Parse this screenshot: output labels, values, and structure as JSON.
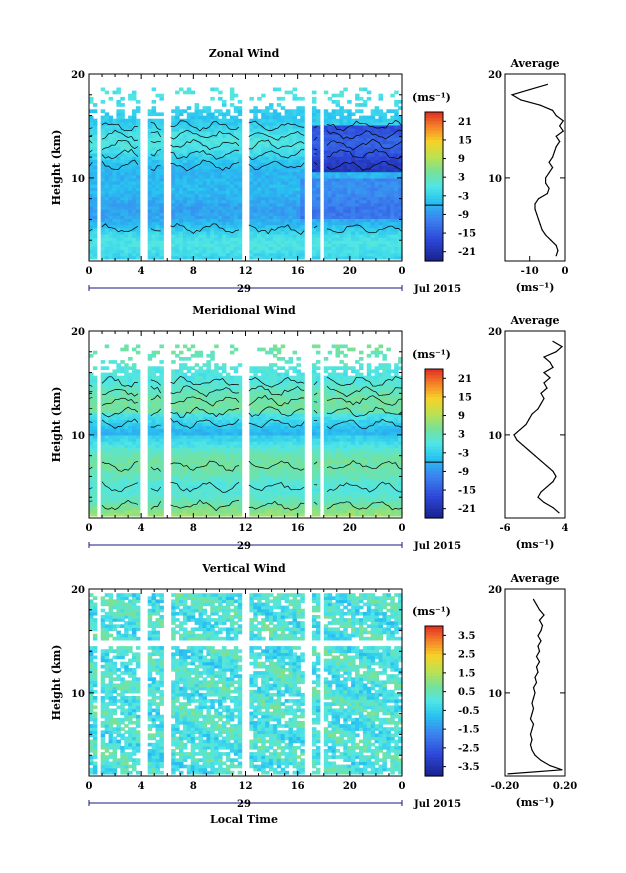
{
  "common": {
    "time_ticks": [
      "0",
      "4",
      "8",
      "12",
      "16",
      "20",
      "0"
    ],
    "day_label": "29",
    "date_label": "Jul 2015",
    "height_label": "Height (km)",
    "height_ticks": [
      "10",
      "20"
    ],
    "colorbar_unit": "(ms⁻¹)",
    "xlabel": "Local Time",
    "average_title": "Average",
    "average_unit": "(ms⁻¹)"
  },
  "chart_data": [
    {
      "type": "heatmap",
      "title": "Zonal Wind",
      "xlabel": "Local Time",
      "ylabel": "Height (km)",
      "xlim": [
        0,
        24
      ],
      "ylim": [
        2,
        20
      ],
      "colorbar": {
        "unit": "(ms⁻¹)",
        "ticks": [
          "21",
          "15",
          "9",
          "3",
          "-3",
          "-9",
          "-15",
          "-21"
        ],
        "range": [
          -24,
          24
        ]
      },
      "profile": {
        "title": "Average",
        "xlabel": "(ms⁻¹)",
        "xlim": [
          -17,
          0
        ],
        "xticks": [
          "-10",
          "0"
        ],
        "heights": [
          2.5,
          3,
          3.5,
          4,
          4.5,
          5,
          5.5,
          6,
          6.5,
          7,
          7.5,
          8,
          8.5,
          9,
          9.5,
          10,
          10.5,
          11,
          11.5,
          12,
          12.5,
          13,
          13.5,
          14,
          14.5,
          15,
          15.5,
          16,
          16.5,
          17,
          17.5,
          18,
          18.5,
          19
        ],
        "values": [
          -2.5,
          -2,
          -2.5,
          -4,
          -5.5,
          -6.5,
          -7,
          -7.5,
          -8,
          -8.5,
          -8.5,
          -7.5,
          -5,
          -4.5,
          -5.5,
          -5.5,
          -4.5,
          -3.5,
          -4.5,
          -3.5,
          -3,
          -2.5,
          -1.5,
          -2.5,
          -0.5,
          -1.5,
          -0.5,
          -2.5,
          -3.5,
          -7,
          -12.5,
          -15,
          -10,
          -5
        ]
      }
    },
    {
      "type": "heatmap",
      "title": "Meridional Wind",
      "xlabel": "Local Time",
      "ylabel": "Height (km)",
      "xlim": [
        0,
        24
      ],
      "ylim": [
        2,
        20
      ],
      "colorbar": {
        "unit": "(ms⁻¹)",
        "ticks": [
          "21",
          "15",
          "9",
          "3",
          "-3",
          "-9",
          "-15",
          "-21"
        ],
        "range": [
          -24,
          24
        ]
      },
      "profile": {
        "title": "Average",
        "xlabel": "(ms⁻¹)",
        "xlim": [
          -6,
          4
        ],
        "xticks": [
          "-6",
          "4"
        ],
        "heights": [
          2.5,
          3,
          3.5,
          4,
          4.5,
          5,
          5.5,
          6,
          6.5,
          7,
          7.5,
          8,
          8.5,
          9,
          9.5,
          10,
          10.5,
          11,
          11.5,
          12,
          12.5,
          13,
          13.5,
          14,
          14.5,
          15,
          15.5,
          16,
          16.5,
          17,
          17.5,
          18,
          18.5,
          19
        ],
        "values": [
          3,
          2,
          0.5,
          -0.5,
          0,
          1,
          2,
          2.5,
          2,
          1,
          0,
          -1,
          -2,
          -3,
          -4,
          -4.5,
          -3.5,
          -2.5,
          -2,
          -1.5,
          -0.5,
          0,
          0.5,
          0,
          1,
          0.5,
          1.5,
          0.5,
          2,
          1.5,
          0.5,
          2.5,
          3.5,
          2
        ]
      }
    },
    {
      "type": "heatmap",
      "title": "Vertical Wind",
      "xlabel": "Local Time",
      "ylabel": "Height (km)",
      "xlim": [
        0,
        24
      ],
      "ylim": [
        2,
        20
      ],
      "colorbar": {
        "unit": "(ms⁻¹)",
        "ticks": [
          "3.5",
          "2.5",
          "1.5",
          "0.5",
          "-0.5",
          "-1.5",
          "-2.5",
          "-3.5"
        ],
        "range": [
          -4,
          4
        ]
      },
      "profile": {
        "title": "Average",
        "xlabel": "(ms⁻¹)",
        "xlim": [
          -0.2,
          0.2
        ],
        "xticks": [
          "-0.20",
          "0.20"
        ],
        "heights": [
          2.2,
          2.6,
          3,
          3.5,
          4,
          4.5,
          5,
          5.5,
          6,
          6.5,
          7,
          7.5,
          8,
          8.5,
          9,
          9.5,
          10,
          10.5,
          11,
          11.5,
          12,
          12.5,
          13,
          13.5,
          14,
          14.5,
          15,
          15.5,
          16,
          16.5,
          17,
          17.5,
          18,
          18.5,
          19
        ],
        "values": [
          -0.18,
          0.18,
          0.1,
          0.04,
          0.0,
          -0.02,
          -0.03,
          -0.02,
          -0.03,
          -0.02,
          -0.01,
          -0.03,
          -0.02,
          -0.01,
          -0.02,
          -0.01,
          0.0,
          -0.01,
          0.01,
          0.0,
          0.02,
          0.01,
          0.03,
          0.01,
          0.03,
          0.02,
          0.04,
          0.02,
          0.04,
          0.05,
          0.03,
          0.06,
          0.03,
          0.01,
          -0.01
        ]
      }
    }
  ]
}
